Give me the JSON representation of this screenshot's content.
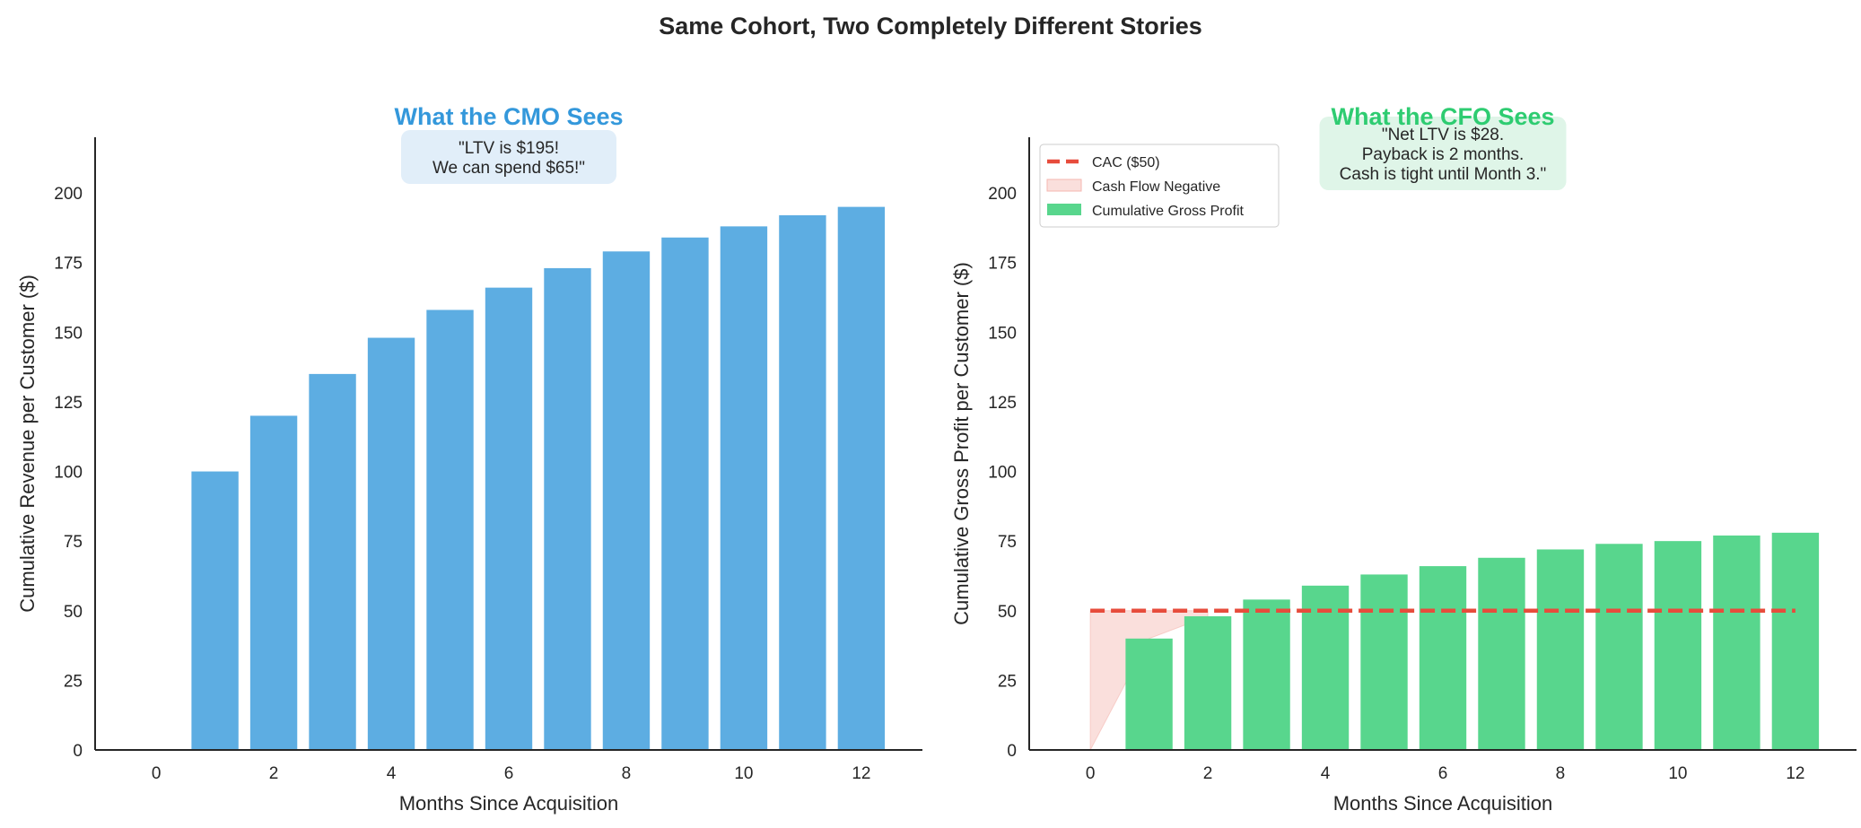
{
  "suptitle": "Same Cohort, Two Completely Different Stories",
  "chart_data": [
    {
      "type": "bar",
      "title": "What the CMO Sees",
      "title_color": "#3498db",
      "xlabel": "Months Since Acquisition",
      "ylabel": "Cumulative Revenue per Customer ($)",
      "x": [
        0,
        1,
        2,
        3,
        4,
        5,
        6,
        7,
        8,
        9,
        10,
        11,
        12
      ],
      "values": [
        0,
        100,
        120,
        135,
        148,
        158,
        166,
        173,
        179,
        184,
        188,
        192,
        195
      ],
      "bar_color": "#5dade2",
      "xlim": [
        -1.04,
        13.04
      ],
      "ylim": [
        0,
        220
      ],
      "xticks": [
        0,
        2,
        4,
        6,
        8,
        10,
        12
      ],
      "yticks": [
        0,
        25,
        50,
        75,
        100,
        125,
        150,
        175,
        200
      ],
      "grid": false,
      "annotation": {
        "lines": [
          "\"LTV is $195!",
          "We can spend $65!\""
        ],
        "bg": "#e1eef9"
      }
    },
    {
      "type": "bar",
      "title": "What the CFO Sees",
      "title_color": "#2ecc71",
      "xlabel": "Months Since Acquisition",
      "ylabel": "Cumulative Gross Profit per Customer ($)",
      "x": [
        0,
        1,
        2,
        3,
        4,
        5,
        6,
        7,
        8,
        9,
        10,
        11,
        12
      ],
      "values": [
        0,
        40,
        48,
        54,
        59,
        63,
        66,
        69,
        72,
        74,
        75,
        77,
        78
      ],
      "bar_color": "#58d68d",
      "bar_label": "Cumulative Gross Profit",
      "cac": {
        "value": 50,
        "label": "CAC ($50)",
        "color": "#e74c3c"
      },
      "fill": {
        "label": "Cash Flow Negative",
        "color": "#f5b7b1"
      },
      "xlim": [
        -1.04,
        13.04
      ],
      "ylim": [
        0,
        220
      ],
      "xticks": [
        0,
        2,
        4,
        6,
        8,
        10,
        12
      ],
      "yticks": [
        0,
        25,
        50,
        75,
        100,
        125,
        150,
        175,
        200
      ],
      "grid": false,
      "legend_position": "top-left",
      "annotation": {
        "lines": [
          "\"Net LTV is $28.",
          "Payback is 2 months.",
          "Cash is tight until Month 3.\""
        ],
        "bg": "#dff5e8"
      }
    }
  ]
}
